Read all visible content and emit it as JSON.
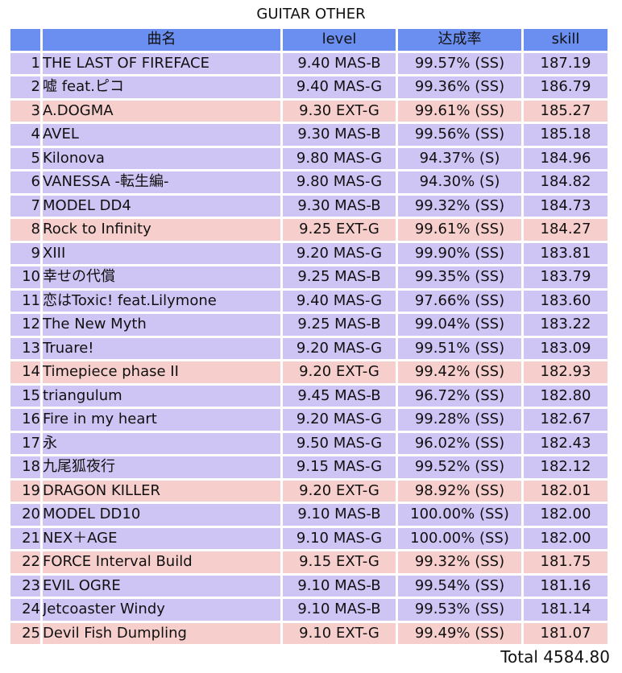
{
  "title": "GUITAR OTHER",
  "headers": {
    "song": "曲名",
    "level": "level",
    "rate": "达成率",
    "skill": "skill"
  },
  "colors": {
    "header": "#6b8ff0",
    "master_row": "#cfc5f5",
    "extreme_row": "#f6cfcd"
  },
  "rows": [
    {
      "rank": "1",
      "song": "THE LAST OF FIREFACE",
      "level": "9.40 MAS-B",
      "rate": "99.57% (SS)",
      "skill": "187.19",
      "diff": "MAS"
    },
    {
      "rank": "2",
      "song": "嘘 feat.ピコ",
      "level": "9.40 MAS-G",
      "rate": "99.36% (SS)",
      "skill": "186.79",
      "diff": "MAS"
    },
    {
      "rank": "3",
      "song": "A.DOGMA",
      "level": "9.30 EXT-G",
      "rate": "99.61% (SS)",
      "skill": "185.27",
      "diff": "EXT"
    },
    {
      "rank": "4",
      "song": "AVEL",
      "level": "9.30 MAS-B",
      "rate": "99.56% (SS)",
      "skill": "185.18",
      "diff": "MAS"
    },
    {
      "rank": "5",
      "song": "Kilonova",
      "level": "9.80 MAS-G",
      "rate": "94.37% (S)",
      "skill": "184.96",
      "diff": "MAS"
    },
    {
      "rank": "6",
      "song": "VANESSA -転生編-",
      "level": "9.80 MAS-G",
      "rate": "94.30% (S)",
      "skill": "184.82",
      "diff": "MAS"
    },
    {
      "rank": "7",
      "song": "MODEL DD4",
      "level": "9.30 MAS-B",
      "rate": "99.32% (SS)",
      "skill": "184.73",
      "diff": "MAS"
    },
    {
      "rank": "8",
      "song": "Rock to Infinity",
      "level": "9.25 EXT-G",
      "rate": "99.61% (SS)",
      "skill": "184.27",
      "diff": "EXT"
    },
    {
      "rank": "9",
      "song": "XIII",
      "level": "9.20 MAS-G",
      "rate": "99.90% (SS)",
      "skill": "183.81",
      "diff": "MAS"
    },
    {
      "rank": "10",
      "song": "幸せの代償",
      "level": "9.25 MAS-B",
      "rate": "99.35% (SS)",
      "skill": "183.79",
      "diff": "MAS"
    },
    {
      "rank": "11",
      "song": "恋はToxic! feat.Lilymone",
      "level": "9.40 MAS-G",
      "rate": "97.66% (SS)",
      "skill": "183.60",
      "diff": "MAS"
    },
    {
      "rank": "12",
      "song": "The New Myth",
      "level": "9.25 MAS-B",
      "rate": "99.04% (SS)",
      "skill": "183.22",
      "diff": "MAS"
    },
    {
      "rank": "13",
      "song": "Truare!",
      "level": "9.20 MAS-G",
      "rate": "99.51% (SS)",
      "skill": "183.09",
      "diff": "MAS"
    },
    {
      "rank": "14",
      "song": "Timepiece phase II",
      "level": "9.20 EXT-G",
      "rate": "99.42% (SS)",
      "skill": "182.93",
      "diff": "EXT"
    },
    {
      "rank": "15",
      "song": "triangulum",
      "level": "9.45 MAS-B",
      "rate": "96.72% (SS)",
      "skill": "182.80",
      "diff": "MAS"
    },
    {
      "rank": "16",
      "song": "Fire in my heart",
      "level": "9.20 MAS-G",
      "rate": "99.28% (SS)",
      "skill": "182.67",
      "diff": "MAS"
    },
    {
      "rank": "17",
      "song": "永",
      "level": "9.50 MAS-G",
      "rate": "96.02% (SS)",
      "skill": "182.43",
      "diff": "MAS"
    },
    {
      "rank": "18",
      "song": "九尾狐夜行",
      "level": "9.15 MAS-G",
      "rate": "99.52% (SS)",
      "skill": "182.12",
      "diff": "MAS"
    },
    {
      "rank": "19",
      "song": "DRAGON KILLER",
      "level": "9.20 EXT-G",
      "rate": "98.92% (SS)",
      "skill": "182.01",
      "diff": "EXT"
    },
    {
      "rank": "20",
      "song": "MODEL DD10",
      "level": "9.10 MAS-B",
      "rate": "100.00% (SS)",
      "skill": "182.00",
      "diff": "MAS"
    },
    {
      "rank": "21",
      "song": "NEX＋AGE",
      "level": "9.10 MAS-G",
      "rate": "100.00% (SS)",
      "skill": "182.00",
      "diff": "MAS"
    },
    {
      "rank": "22",
      "song": "FORCE Interval Build",
      "level": "9.15 EXT-G",
      "rate": "99.32% (SS)",
      "skill": "181.75",
      "diff": "EXT"
    },
    {
      "rank": "23",
      "song": "EVIL OGRE",
      "level": "9.10 MAS-B",
      "rate": "99.54% (SS)",
      "skill": "181.16",
      "diff": "MAS"
    },
    {
      "rank": "24",
      "song": "Jetcoaster Windy",
      "level": "9.10 MAS-B",
      "rate": "99.53% (SS)",
      "skill": "181.14",
      "diff": "MAS"
    },
    {
      "rank": "25",
      "song": "Devil Fish Dumpling",
      "level": "9.10 EXT-G",
      "rate": "99.49% (SS)",
      "skill": "181.07",
      "diff": "EXT"
    }
  ],
  "total": "Total 4584.80"
}
